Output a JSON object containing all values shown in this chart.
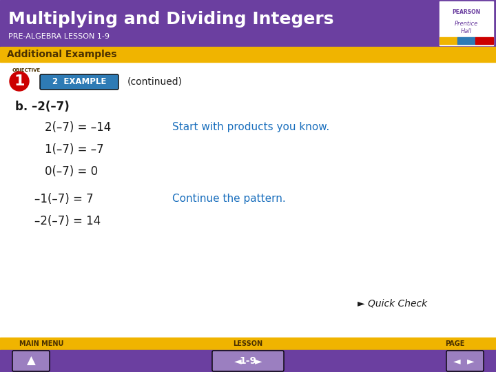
{
  "title": "Multiplying and Dividing Integers",
  "subtitle": "PRE-ALGEBRA LESSON 1-9",
  "section_label": "Additional Examples",
  "header_bg": "#6b3fa0",
  "section_bg": "#f0b400",
  "body_bg": "#ffffff",
  "footer_bg": "#f0b400",
  "nav_bg": "#6b3fa0",
  "title_color": "#ffffff",
  "subtitle_color": "#ffffff",
  "section_color": "#4a3000",
  "example_badge_bg": "#2e7bb5",
  "example_badge_text": "2  EXAMPLE",
  "continued_text": "(continued)",
  "objective_label": "OBJECTIVE",
  "obj_number": "1",
  "obj_bg": "#cc0000",
  "b_label": "b. –2(–7)",
  "lines_black": [
    "2(–7) = –14",
    "1(–7) = –7",
    "0(–7) = 0"
  ],
  "lines_indent_blue": [
    "–1(–7) = 7",
    "–2(–7) = 14"
  ],
  "annotation1": "Start with products you know.",
  "annotation1_line": 0,
  "annotation2": "Continue the pattern.",
  "annotation2_line": 0,
  "blue_color": "#1a6fbd",
  "black_color": "#1a1a1a",
  "quick_check": "Quick Check",
  "footer_labels": [
    "MAIN MENU",
    "LESSON",
    "PAGE"
  ],
  "lesson_number": "1-9",
  "pearson_logo_color": "#6b3fa0"
}
